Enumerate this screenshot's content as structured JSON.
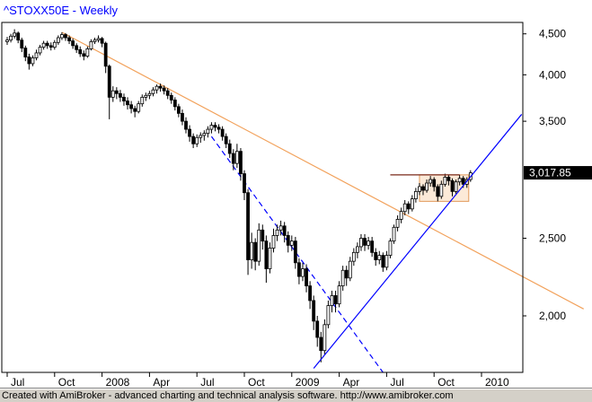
{
  "header": {
    "title": "^STOXX50E - Weekly",
    "title_color": "#0000ff"
  },
  "status_bar": {
    "text": "Created with AmiBroker - advanced charting and technical analysis software. http://www.amibroker.com"
  },
  "price_marker": {
    "label": "3,017.85",
    "price": 3017.85,
    "bg": "#000000",
    "fg": "#ffffff"
  },
  "chart_data": {
    "type": "candlestick",
    "title": "^STOXX50E - Weekly",
    "symbol": "^STOXX50E",
    "timeframe": "Weekly",
    "grid": false,
    "last_close": 3017.85,
    "bar_count": 128,
    "style": {
      "up_fill": "#ffffff",
      "down_fill": "#000000",
      "outline": "#000000"
    },
    "y_axis": {
      "scale": "log",
      "side": "right",
      "price_top": 4650,
      "price_bottom": 1700,
      "labels": [
        {
          "text": "4,500",
          "price": 4500
        },
        {
          "text": "4,000",
          "price": 4000
        },
        {
          "text": "3,500",
          "price": 3500
        },
        {
          "text": "2,500",
          "price": 2500
        },
        {
          "text": "2,000",
          "price": 2000
        }
      ]
    },
    "x_axis": {
      "ticks": [
        {
          "label": "Jul",
          "week": 0
        },
        {
          "label": "Oct",
          "week": 13
        },
        {
          "label": "2008",
          "week": 26
        },
        {
          "label": "Apr",
          "week": 39
        },
        {
          "label": "Jul",
          "week": 52
        },
        {
          "label": "Oct",
          "week": 65
        },
        {
          "label": "2009",
          "week": 78
        },
        {
          "label": "Apr",
          "week": 91
        },
        {
          "label": "Jul",
          "week": 104
        },
        {
          "label": "Oct",
          "week": 117
        },
        {
          "label": "2010",
          "week": 130
        }
      ]
    },
    "overlays": {
      "orange_downtrend_line": {
        "from": {
          "week": 15,
          "price": 4520
        },
        "to": {
          "week": 158,
          "price": 2040
        },
        "color": "#f2a25c",
        "style": "solid"
      },
      "blue_dashed_downtrend_line": {
        "from": {
          "week": 56,
          "price": 3350
        },
        "to": {
          "week": 103,
          "price": 1700
        },
        "color": "#0000ff",
        "style": "dashed"
      },
      "blue_uptrend_line": {
        "from": {
          "week": 84,
          "price": 1720
        },
        "to": {
          "week": 141,
          "price": 3570
        },
        "color": "#0000ff",
        "style": "solid"
      },
      "resistance_segment": {
        "from_week": 105,
        "to_week": 124,
        "price": 3000,
        "color": "#7a2a1a"
      },
      "consolidation_box": {
        "from_week": 113,
        "to_week": 126.5,
        "price_top": 3000,
        "price_bottom": 2780,
        "fill": "#f9d9b8",
        "fill_opacity": 0.55,
        "stroke": "#e39a5a"
      }
    },
    "bars_format": "[open, high, low, close] weekly, starting Jul 2007",
    "bars": [
      [
        4400,
        4460,
        4360,
        4420
      ],
      [
        4420,
        4500,
        4390,
        4470
      ],
      [
        4470,
        4560,
        4440,
        4510
      ],
      [
        4510,
        4530,
        4380,
        4420
      ],
      [
        4420,
        4450,
        4270,
        4320
      ],
      [
        4320,
        4350,
        4160,
        4210
      ],
      [
        4210,
        4250,
        4060,
        4130
      ],
      [
        4130,
        4230,
        4100,
        4200
      ],
      [
        4200,
        4300,
        4170,
        4260
      ],
      [
        4260,
        4360,
        4230,
        4330
      ],
      [
        4330,
        4410,
        4300,
        4380
      ],
      [
        4380,
        4410,
        4310,
        4350
      ],
      [
        4350,
        4390,
        4290,
        4330
      ],
      [
        4330,
        4420,
        4300,
        4390
      ],
      [
        4390,
        4480,
        4360,
        4450
      ],
      [
        4450,
        4520,
        4420,
        4490
      ],
      [
        4490,
        4510,
        4410,
        4450
      ],
      [
        4450,
        4480,
        4370,
        4410
      ],
      [
        4410,
        4440,
        4310,
        4350
      ],
      [
        4350,
        4380,
        4260,
        4300
      ],
      [
        4300,
        4340,
        4210,
        4250
      ],
      [
        4250,
        4290,
        4170,
        4220
      ],
      [
        4220,
        4340,
        4200,
        4310
      ],
      [
        4310,
        4430,
        4290,
        4400
      ],
      [
        4400,
        4450,
        4370,
        4420
      ],
      [
        4420,
        4480,
        4390,
        4440
      ],
      [
        4440,
        4460,
        4330,
        4380
      ],
      [
        4380,
        4400,
        4020,
        4100
      ],
      [
        4100,
        4120,
        3520,
        3750
      ],
      [
        3750,
        3870,
        3700,
        3820
      ],
      [
        3820,
        3860,
        3730,
        3790
      ],
      [
        3790,
        3830,
        3700,
        3750
      ],
      [
        3750,
        3790,
        3660,
        3710
      ],
      [
        3710,
        3750,
        3620,
        3670
      ],
      [
        3670,
        3710,
        3580,
        3630
      ],
      [
        3630,
        3660,
        3540,
        3600
      ],
      [
        3600,
        3710,
        3580,
        3680
      ],
      [
        3680,
        3780,
        3650,
        3750
      ],
      [
        3750,
        3800,
        3710,
        3770
      ],
      [
        3770,
        3820,
        3730,
        3790
      ],
      [
        3790,
        3860,
        3760,
        3830
      ],
      [
        3830,
        3890,
        3790,
        3870
      ],
      [
        3870,
        3900,
        3810,
        3850
      ],
      [
        3850,
        3880,
        3780,
        3820
      ],
      [
        3820,
        3850,
        3730,
        3770
      ],
      [
        3770,
        3800,
        3680,
        3720
      ],
      [
        3720,
        3750,
        3610,
        3650
      ],
      [
        3650,
        3680,
        3540,
        3580
      ],
      [
        3580,
        3620,
        3460,
        3500
      ],
      [
        3500,
        3540,
        3380,
        3420
      ],
      [
        3420,
        3460,
        3300,
        3350
      ],
      [
        3350,
        3380,
        3240,
        3280
      ],
      [
        3280,
        3370,
        3250,
        3340
      ],
      [
        3340,
        3390,
        3290,
        3360
      ],
      [
        3360,
        3410,
        3310,
        3380
      ],
      [
        3380,
        3450,
        3340,
        3420
      ],
      [
        3420,
        3490,
        3380,
        3460
      ],
      [
        3460,
        3490,
        3400,
        3440
      ],
      [
        3440,
        3470,
        3380,
        3420
      ],
      [
        3420,
        3450,
        3310,
        3350
      ],
      [
        3350,
        3380,
        3240,
        3280
      ],
      [
        3280,
        3320,
        3150,
        3190
      ],
      [
        3190,
        3230,
        3040,
        3100
      ],
      [
        3100,
        3280,
        3060,
        3210
      ],
      [
        3210,
        3240,
        2950,
        3010
      ],
      [
        3010,
        3040,
        2790,
        2850
      ],
      [
        2850,
        2880,
        2250,
        2350
      ],
      [
        2350,
        2540,
        2290,
        2470
      ],
      [
        2470,
        2500,
        2280,
        2340
      ],
      [
        2340,
        2610,
        2310,
        2560
      ],
      [
        2560,
        2600,
        2420,
        2480
      ],
      [
        2480,
        2520,
        2200,
        2290
      ],
      [
        2290,
        2470,
        2260,
        2430
      ],
      [
        2430,
        2570,
        2400,
        2520
      ],
      [
        2520,
        2600,
        2480,
        2560
      ],
      [
        2560,
        2630,
        2520,
        2590
      ],
      [
        2590,
        2620,
        2470,
        2520
      ],
      [
        2520,
        2550,
        2400,
        2450
      ],
      [
        2450,
        2520,
        2410,
        2480
      ],
      [
        2480,
        2510,
        2290,
        2330
      ],
      [
        2330,
        2360,
        2190,
        2240
      ],
      [
        2240,
        2330,
        2210,
        2290
      ],
      [
        2290,
        2320,
        2140,
        2180
      ],
      [
        2180,
        2210,
        2040,
        2090
      ],
      [
        2090,
        2120,
        1920,
        1970
      ],
      [
        1970,
        2000,
        1830,
        1880
      ],
      [
        1880,
        1910,
        1750,
        1810
      ],
      [
        1810,
        1980,
        1790,
        1950
      ],
      [
        1950,
        2090,
        1930,
        2060
      ],
      [
        2060,
        2150,
        2020,
        2120
      ],
      [
        2120,
        2150,
        2020,
        2070
      ],
      [
        2070,
        2210,
        2050,
        2180
      ],
      [
        2180,
        2310,
        2150,
        2280
      ],
      [
        2280,
        2310,
        2180,
        2230
      ],
      [
        2230,
        2370,
        2210,
        2340
      ],
      [
        2340,
        2430,
        2310,
        2400
      ],
      [
        2400,
        2470,
        2360,
        2440
      ],
      [
        2440,
        2530,
        2410,
        2500
      ],
      [
        2500,
        2530,
        2410,
        2450
      ],
      [
        2450,
        2510,
        2420,
        2480
      ],
      [
        2480,
        2510,
        2370,
        2400
      ],
      [
        2400,
        2430,
        2310,
        2350
      ],
      [
        2350,
        2410,
        2320,
        2380
      ],
      [
        2380,
        2400,
        2270,
        2300
      ],
      [
        2300,
        2410,
        2280,
        2380
      ],
      [
        2380,
        2500,
        2360,
        2480
      ],
      [
        2480,
        2600,
        2460,
        2580
      ],
      [
        2580,
        2670,
        2550,
        2640
      ],
      [
        2640,
        2730,
        2610,
        2700
      ],
      [
        2700,
        2790,
        2670,
        2760
      ],
      [
        2760,
        2780,
        2680,
        2720
      ],
      [
        2720,
        2830,
        2700,
        2800
      ],
      [
        2800,
        2890,
        2770,
        2860
      ],
      [
        2860,
        2930,
        2830,
        2900
      ],
      [
        2900,
        2920,
        2830,
        2870
      ],
      [
        2870,
        2960,
        2850,
        2930
      ],
      [
        2930,
        2990,
        2900,
        2960
      ],
      [
        2960,
        2980,
        2860,
        2900
      ],
      [
        2900,
        2920,
        2780,
        2820
      ],
      [
        2820,
        2950,
        2800,
        2920
      ],
      [
        2920,
        3010,
        2900,
        2980
      ],
      [
        2980,
        3000,
        2910,
        2950
      ],
      [
        2950,
        2970,
        2820,
        2860
      ],
      [
        2860,
        2960,
        2840,
        2940
      ],
      [
        2940,
        3000,
        2910,
        2970
      ],
      [
        2970,
        2990,
        2890,
        2920
      ],
      [
        2920,
        2980,
        2890,
        2960
      ],
      [
        2960,
        3040,
        2940,
        3017.85
      ]
    ]
  }
}
